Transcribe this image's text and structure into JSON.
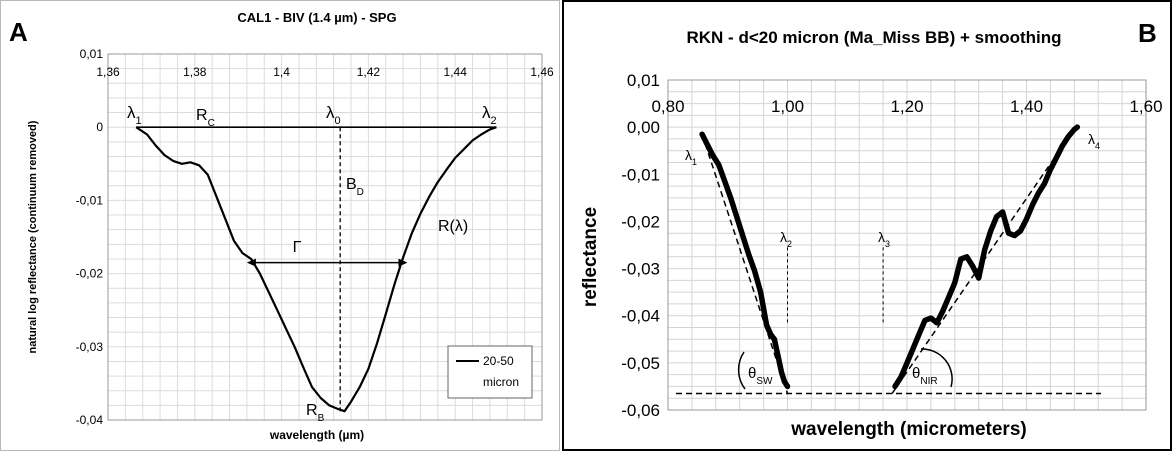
{
  "chart_data": [
    {
      "panel_letter": "A",
      "type": "line",
      "title": "CAL1 - BIV (1.4 µm) - SPG",
      "xlabel": "wavelength (µm)",
      "ylabel": "natural log reflectance (continuum removed)",
      "xlim": [
        1.36,
        1.46
      ],
      "ylim": [
        -0.04,
        0.01
      ],
      "x_ticks": [
        "1,36",
        "1,38",
        "1,4",
        "1,42",
        "1,44",
        "1,46"
      ],
      "y_ticks": [
        "0,01",
        "0",
        "-0,01",
        "-0,02",
        "-0,03",
        "-0,04"
      ],
      "grid": true,
      "legend_position": "bottom-right",
      "legend": [
        "20-50",
        "micron"
      ],
      "series": [
        {
          "name": "20-50 micron",
          "x": [
            1.3665,
            1.369,
            1.371,
            1.373,
            1.375,
            1.377,
            1.379,
            1.381,
            1.383,
            1.385,
            1.387,
            1.389,
            1.391,
            1.393,
            1.395,
            1.397,
            1.399,
            1.401,
            1.403,
            1.405,
            1.407,
            1.409,
            1.411,
            1.413,
            1.4145,
            1.416,
            1.418,
            1.42,
            1.422,
            1.424,
            1.426,
            1.428,
            1.43,
            1.432,
            1.434,
            1.436,
            1.438,
            1.44,
            1.442,
            1.444,
            1.446,
            1.448,
            1.4495
          ],
          "y": [
            0.0,
            -0.001,
            -0.0025,
            -0.0038,
            -0.0046,
            -0.005,
            -0.0048,
            -0.0052,
            -0.0065,
            -0.0095,
            -0.0125,
            -0.0155,
            -0.0172,
            -0.018,
            -0.02,
            -0.0225,
            -0.025,
            -0.0275,
            -0.03,
            -0.0328,
            -0.0355,
            -0.037,
            -0.038,
            -0.0385,
            -0.0388,
            -0.0375,
            -0.0355,
            -0.033,
            -0.0295,
            -0.0255,
            -0.0215,
            -0.0178,
            -0.0145,
            -0.0118,
            -0.0095,
            -0.0075,
            -0.0058,
            -0.0042,
            -0.003,
            -0.0018,
            -0.001,
            -0.0003,
            0.0
          ]
        }
      ],
      "annotations": {
        "lambda1": {
          "symbol": "λ",
          "sub": "1"
        },
        "lambda0": {
          "symbol": "λ",
          "sub": "0"
        },
        "lambda2": {
          "symbol": "λ",
          "sub": "2"
        },
        "rc": {
          "symbol": "R",
          "sub": "C"
        },
        "bd": {
          "symbol": "B",
          "sub": "D"
        },
        "rb": {
          "symbol": "R",
          "sub": "B"
        },
        "gamma": "Γ",
        "r_lambda": "R(λ)"
      },
      "continuum_x": [
        1.3665,
        1.4495
      ],
      "continuum_y": 0,
      "band_center_x": 1.4135,
      "fwhm_x": [
        1.392,
        1.429
      ],
      "fwhm_y": -0.0185
    },
    {
      "panel_letter": "B",
      "type": "line",
      "title": "RKN - d<20 micron (Ma_Miss BB) + smoothing",
      "xlabel": "wavelength (micrometers)",
      "ylabel": "reflectance",
      "xlim": [
        0.8,
        1.6
      ],
      "ylim": [
        -0.06,
        0.01
      ],
      "x_ticks": [
        "0,80",
        "1,00",
        "1,20",
        "1,40",
        "1,60"
      ],
      "y_ticks": [
        "0,01",
        "0,00",
        "-0,01",
        "-0,02",
        "-0,03",
        "-0,04",
        "-0,05",
        "-0,06"
      ],
      "grid": true,
      "series": [
        {
          "x": [
            0.857,
            0.865,
            0.875,
            0.885,
            0.895,
            0.905,
            0.915,
            0.925,
            0.935,
            0.945,
            0.955,
            0.965,
            0.972,
            0.978,
            0.985,
            0.99,
            0.995,
            1.0
          ],
          "y": [
            -0.0015,
            -0.0035,
            -0.006,
            -0.008,
            -0.0115,
            -0.015,
            -0.019,
            -0.023,
            -0.027,
            -0.0305,
            -0.035,
            -0.042,
            -0.044,
            -0.045,
            -0.049,
            -0.052,
            -0.054,
            -0.055
          ]
        },
        {
          "x": [
            1.18,
            1.19,
            1.2,
            1.21,
            1.22,
            1.23,
            1.24,
            1.25,
            1.26,
            1.27,
            1.28,
            1.29,
            1.3,
            1.31,
            1.32,
            1.33,
            1.34,
            1.35,
            1.36,
            1.37,
            1.38,
            1.39,
            1.4,
            1.41,
            1.42,
            1.43,
            1.44,
            1.45,
            1.46,
            1.47,
            1.48,
            1.485
          ],
          "y": [
            -0.055,
            -0.053,
            -0.05,
            -0.047,
            -0.044,
            -0.041,
            -0.0405,
            -0.0415,
            -0.039,
            -0.036,
            -0.033,
            -0.028,
            -0.0275,
            -0.0295,
            -0.032,
            -0.026,
            -0.022,
            -0.019,
            -0.018,
            -0.0225,
            -0.023,
            -0.022,
            -0.0195,
            -0.0165,
            -0.014,
            -0.012,
            -0.009,
            -0.0065,
            -0.004,
            -0.002,
            -0.0005,
            0.0
          ]
        }
      ],
      "annotations": {
        "lambda1": {
          "symbol": "λ",
          "sub": "1"
        },
        "lambda2": {
          "symbol": "λ",
          "sub": "2"
        },
        "lambda3": {
          "symbol": "λ",
          "sub": "3"
        },
        "lambda4": {
          "symbol": "λ",
          "sub": "4"
        },
        "theta_sw": {
          "symbol": "θ",
          "sub": "SW"
        },
        "theta_nir": {
          "symbol": "θ",
          "sub": "NIR"
        }
      },
      "baseline_y": -0.0565,
      "tangent_sw": {
        "x": [
          0.857,
          1.0
        ],
        "y": [
          -0.0015,
          -0.0565
        ]
      },
      "tangent_nir": {
        "x": [
          1.175,
          1.485
        ],
        "y": [
          -0.0565,
          0.0005
        ]
      },
      "lambda2_marker": {
        "x": 1.0,
        "y": [
          -0.0255,
          -0.0415
        ]
      },
      "lambda3_marker": {
        "x": 1.16,
        "y": [
          -0.0255,
          -0.0415
        ]
      }
    }
  ]
}
